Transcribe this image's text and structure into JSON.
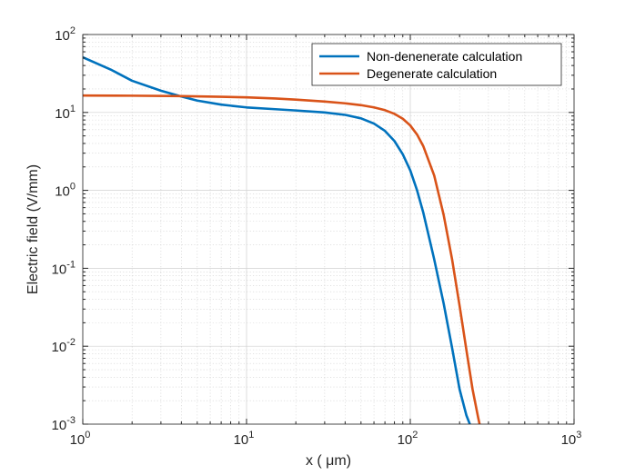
{
  "chart_data": {
    "type": "line",
    "xscale": "log",
    "yscale": "log",
    "xlim": [
      1,
      1000
    ],
    "ylim": [
      0.001,
      100
    ],
    "xlabel": "x ( μm)",
    "ylabel": "Electric field (V/mm)",
    "grid": true,
    "minor_grid": true,
    "legend_location": "top-right",
    "x_ticks": [
      {
        "base": "10",
        "exp": "0"
      },
      {
        "base": "10",
        "exp": "1"
      },
      {
        "base": "10",
        "exp": "2"
      },
      {
        "base": "10",
        "exp": "3"
      }
    ],
    "y_ticks": [
      {
        "base": "10",
        "exp": "-3"
      },
      {
        "base": "10",
        "exp": "-2"
      },
      {
        "base": "10",
        "exp": "-1"
      },
      {
        "base": "10",
        "exp": "0"
      },
      {
        "base": "10",
        "exp": "1"
      },
      {
        "base": "10",
        "exp": "2"
      }
    ],
    "series": [
      {
        "name": "Non-denenerate calculation",
        "color": "#0072BD",
        "x": [
          1,
          1.5,
          2,
          3,
          4,
          5,
          7,
          10,
          15,
          20,
          30,
          40,
          50,
          60,
          70,
          80,
          90,
          100,
          110,
          120,
          140,
          160,
          180,
          200,
          220,
          231
        ],
        "y": [
          51,
          35,
          25.5,
          19,
          16,
          14.2,
          12.6,
          11.6,
          11.0,
          10.6,
          10.0,
          9.3,
          8.4,
          7.2,
          5.8,
          4.3,
          2.9,
          1.8,
          1.0,
          0.52,
          0.13,
          0.035,
          0.0095,
          0.0028,
          0.0013,
          0.001
        ]
      },
      {
        "name": "Degenerate calculation",
        "color": "#D95319",
        "x": [
          1,
          2,
          4,
          7,
          10,
          15,
          20,
          30,
          40,
          50,
          60,
          70,
          80,
          90,
          100,
          110,
          120,
          140,
          160,
          180,
          200,
          220,
          240,
          260,
          265
        ],
        "y": [
          16.5,
          16.4,
          16.2,
          15.9,
          15.6,
          15.1,
          14.6,
          13.8,
          13.1,
          12.4,
          11.6,
          10.7,
          9.6,
          8.3,
          6.8,
          5.2,
          3.7,
          1.55,
          0.48,
          0.13,
          0.033,
          0.009,
          0.0028,
          0.0012,
          0.001
        ]
      }
    ]
  }
}
